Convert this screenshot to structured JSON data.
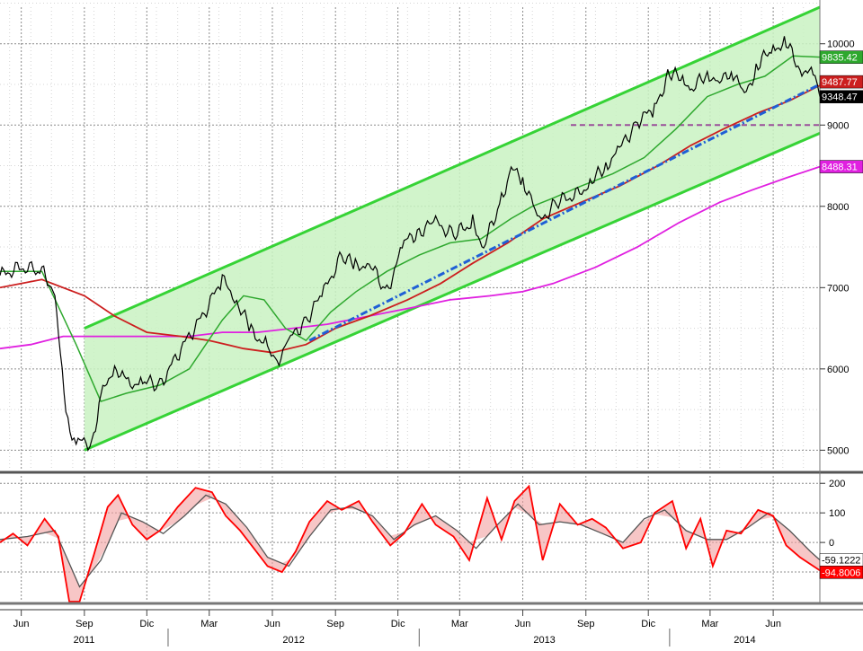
{
  "colors": {
    "background": "#ffffff",
    "grid": "#8c8c8c",
    "price": "#000000",
    "ma_short": "#2ea82e",
    "ma_mid": "#cc1f1f",
    "ma_long": "#e020e0",
    "channel_line": "#36d336",
    "channel_fill": "#c9f2c2",
    "support_line": "#1f5fd6",
    "level_line": "#9a4f9a",
    "osc_fast": "#ff0000",
    "osc_slow": "#555555",
    "osc_fill": "#f2a0a0"
  },
  "chart_data": [
    {
      "type": "line",
      "panel": "price",
      "x_ticks": [
        "Jun",
        "Sep",
        "Dic",
        "Mar",
        "Jun",
        "Sep",
        "Dic",
        "Mar",
        "Jun",
        "Sep",
        "Dic",
        "Mar",
        "Jun"
      ],
      "year_labels": [
        "2011",
        "2012",
        "2013",
        "2014"
      ],
      "y_ticks": [
        5000,
        6000,
        7000,
        8000,
        9000,
        10000
      ],
      "ylim": [
        4750,
        10450
      ],
      "grid": true,
      "time_range": [
        "2011-05-01",
        "2014-08-08"
      ],
      "series": [
        {
          "role": "price",
          "x": [
            "2011-05-01",
            "2011-06-01",
            "2011-07-01",
            "2011-07-20",
            "2011-08-05",
            "2011-08-20",
            "2011-09-12",
            "2011-09-25",
            "2011-10-15",
            "2011-11-01",
            "2011-11-25",
            "2011-12-20",
            "2012-01-20",
            "2012-02-20",
            "2012-03-20",
            "2012-04-10",
            "2012-05-01",
            "2012-05-25",
            "2012-06-05",
            "2012-06-25",
            "2012-07-20",
            "2012-08-15",
            "2012-09-10",
            "2012-09-30",
            "2012-10-20",
            "2012-11-15",
            "2012-12-10",
            "2013-01-01",
            "2013-01-25",
            "2013-02-20",
            "2013-03-20",
            "2013-04-05",
            "2013-05-01",
            "2013-05-15",
            "2013-06-01",
            "2013-06-25",
            "2013-07-20",
            "2013-08-20",
            "2013-09-10",
            "2013-09-30",
            "2013-10-20",
            "2013-11-15",
            "2013-12-10",
            "2014-01-01",
            "2014-01-20",
            "2014-02-05",
            "2014-02-25",
            "2014-03-15",
            "2014-04-01",
            "2014-04-20",
            "2014-05-10",
            "2014-06-01",
            "2014-06-20",
            "2014-07-10",
            "2014-08-01",
            "2014-08-08"
          ],
          "values": [
            7150,
            7250,
            7200,
            6950,
            5400,
            5100,
            5100,
            5650,
            6050,
            5800,
            5850,
            5800,
            6250,
            6650,
            7100,
            6850,
            6450,
            6300,
            6050,
            6350,
            6600,
            6950,
            7400,
            7250,
            7300,
            6950,
            7550,
            7700,
            7800,
            7650,
            7800,
            7500,
            8100,
            8450,
            8350,
            7800,
            8050,
            8150,
            8300,
            8500,
            8700,
            9050,
            9200,
            9650,
            9550,
            9450,
            9650,
            9500,
            9700,
            9350,
            9750,
            9950,
            10000,
            9700,
            9600,
            9348.47
          ],
          "last_label": "9348.47"
        },
        {
          "role": "moving-average-short",
          "x": [
            "2011-05-01",
            "2011-07-01",
            "2011-08-20",
            "2011-09-25",
            "2011-11-01",
            "2011-12-20",
            "2012-02-01",
            "2012-03-20",
            "2012-04-20",
            "2012-05-20",
            "2012-06-20",
            "2012-07-20",
            "2012-08-25",
            "2012-10-01",
            "2012-11-15",
            "2013-01-01",
            "2013-02-15",
            "2013-04-01",
            "2013-05-15",
            "2013-06-15",
            "2013-07-15",
            "2013-08-25",
            "2013-10-10",
            "2013-11-25",
            "2014-01-10",
            "2014-02-25",
            "2014-04-10",
            "2014-05-20",
            "2014-06-30",
            "2014-08-08"
          ],
          "values": [
            7200,
            7200,
            6300,
            5600,
            5700,
            5800,
            6000,
            6600,
            6900,
            6850,
            6500,
            6350,
            6700,
            6950,
            7200,
            7400,
            7550,
            7600,
            7850,
            8000,
            8100,
            8250,
            8400,
            8600,
            8950,
            9350,
            9500,
            9600,
            9850,
            9835.42
          ],
          "last_label": "9835.42"
        },
        {
          "role": "moving-average-mid",
          "x": [
            "2011-05-01",
            "2011-07-01",
            "2011-09-01",
            "2011-10-15",
            "2011-12-01",
            "2012-01-20",
            "2012-03-01",
            "2012-04-20",
            "2012-06-01",
            "2012-07-20",
            "2012-09-01",
            "2012-10-20",
            "2012-12-15",
            "2013-02-01",
            "2013-03-20",
            "2013-05-10",
            "2013-07-01",
            "2013-08-25",
            "2013-10-20",
            "2013-12-15",
            "2014-02-01",
            "2014-03-20",
            "2014-05-10",
            "2014-06-25",
            "2014-08-08"
          ],
          "values": [
            7000,
            7100,
            6900,
            6650,
            6450,
            6400,
            6350,
            6250,
            6200,
            6300,
            6500,
            6650,
            6850,
            7050,
            7300,
            7550,
            7850,
            8050,
            8250,
            8500,
            8750,
            8950,
            9150,
            9300,
            9487.77
          ],
          "last_label": "9487.77"
        },
        {
          "role": "moving-average-long",
          "x": [
            "2011-05-01",
            "2011-06-15",
            "2011-08-01",
            "2011-09-15",
            "2011-11-01",
            "2011-12-15",
            "2012-02-01",
            "2012-03-20",
            "2012-05-10",
            "2012-07-01",
            "2012-08-20",
            "2012-10-20",
            "2012-12-20",
            "2013-02-15",
            "2013-04-15",
            "2013-06-01",
            "2013-07-15",
            "2013-09-15",
            "2013-11-15",
            "2014-01-15",
            "2014-03-15",
            "2014-05-01",
            "2014-06-20",
            "2014-08-08"
          ],
          "values": [
            6250,
            6300,
            6400,
            6400,
            6400,
            6400,
            6400,
            6450,
            6450,
            6500,
            6550,
            6650,
            6750,
            6850,
            6900,
            6950,
            7050,
            7250,
            7500,
            7800,
            8050,
            8200,
            8350,
            8488.31
          ],
          "last_label": "8488.31"
        }
      ],
      "channel": {
        "upper": {
          "x": [
            "2011-09-01",
            "2014-08-08"
          ],
          "values": [
            6500,
            10450
          ]
        },
        "lower": {
          "x": [
            "2011-09-01",
            "2014-08-08"
          ],
          "values": [
            5000,
            8900
          ]
        }
      },
      "support_line": {
        "x": [
          "2012-07-25",
          "2014-08-08"
        ],
        "values": [
          6350,
          9500
        ]
      },
      "level_line": {
        "x": [
          "2013-08-10",
          "2014-08-08"
        ],
        "values": [
          9000,
          9000
        ]
      }
    },
    {
      "type": "line",
      "panel": "oscillator",
      "y_ticks": [
        200,
        100,
        0
      ],
      "ylim": [
        -200,
        225
      ],
      "grid": true,
      "series": [
        {
          "role": "oscillator-fast",
          "x": [
            "2011-05-01",
            "2011-05-20",
            "2011-06-10",
            "2011-07-05",
            "2011-07-25",
            "2011-08-10",
            "2011-08-25",
            "2011-09-15",
            "2011-10-05",
            "2011-10-20",
            "2011-11-10",
            "2011-12-01",
            "2011-12-20",
            "2012-01-15",
            "2012-02-10",
            "2012-03-05",
            "2012-03-25",
            "2012-04-15",
            "2012-05-05",
            "2012-05-25",
            "2012-06-15",
            "2012-07-05",
            "2012-07-25",
            "2012-08-20",
            "2012-09-10",
            "2012-10-05",
            "2012-10-25",
            "2012-11-20",
            "2012-12-10",
            "2013-01-05",
            "2013-01-25",
            "2013-02-20",
            "2013-03-15",
            "2013-04-10",
            "2013-05-01",
            "2013-05-20",
            "2013-06-10",
            "2013-06-30",
            "2013-07-25",
            "2013-08-20",
            "2013-09-10",
            "2013-09-30",
            "2013-10-25",
            "2013-11-20",
            "2013-12-10",
            "2014-01-05",
            "2014-01-25",
            "2014-02-15",
            "2014-03-05",
            "2014-03-25",
            "2014-04-15",
            "2014-05-10",
            "2014-06-01",
            "2014-06-20",
            "2014-07-10",
            "2014-08-08"
          ],
          "values": [
            0,
            30,
            -10,
            80,
            20,
            -200,
            -200,
            -40,
            120,
            160,
            60,
            10,
            40,
            120,
            185,
            170,
            90,
            40,
            -20,
            -80,
            -100,
            -30,
            70,
            140,
            110,
            140,
            70,
            -10,
            30,
            130,
            60,
            20,
            -60,
            150,
            10,
            140,
            190,
            -60,
            130,
            60,
            80,
            50,
            -20,
            0,
            100,
            140,
            -20,
            80,
            -80,
            40,
            30,
            110,
            90,
            -10,
            -50,
            -94.8006
          ],
          "last_label": "-94.8006"
        },
        {
          "role": "oscillator-slow",
          "x": [
            "2011-05-01",
            "2011-06-10",
            "2011-07-20",
            "2011-08-25",
            "2011-09-25",
            "2011-10-25",
            "2011-11-25",
            "2011-12-25",
            "2012-01-25",
            "2012-02-25",
            "2012-03-25",
            "2012-04-25",
            "2012-05-25",
            "2012-06-25",
            "2012-07-25",
            "2012-08-25",
            "2012-09-25",
            "2012-10-25",
            "2012-11-25",
            "2012-12-25",
            "2013-01-25",
            "2013-02-25",
            "2013-03-25",
            "2013-04-25",
            "2013-05-25",
            "2013-06-25",
            "2013-07-25",
            "2013-08-25",
            "2013-09-25",
            "2013-10-25",
            "2013-11-25",
            "2013-12-25",
            "2014-01-25",
            "2014-02-25",
            "2014-03-25",
            "2014-04-25",
            "2014-05-25",
            "2014-06-25",
            "2014-07-25",
            "2014-08-08"
          ],
          "values": [
            10,
            20,
            40,
            -150,
            -60,
            100,
            70,
            30,
            90,
            160,
            130,
            50,
            -50,
            -80,
            20,
            110,
            120,
            90,
            10,
            60,
            90,
            40,
            -20,
            60,
            130,
            60,
            70,
            60,
            30,
            0,
            80,
            110,
            40,
            10,
            10,
            50,
            100,
            40,
            -30,
            -59.1222
          ],
          "last_label": "-59.1222"
        }
      ]
    }
  ]
}
